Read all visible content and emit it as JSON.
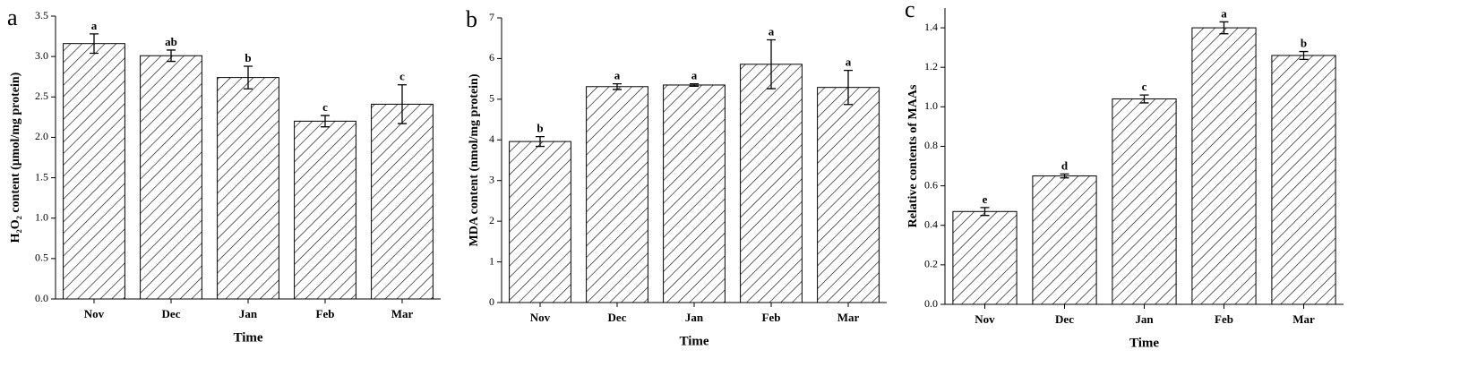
{
  "chart_data": [
    {
      "type": "bar",
      "panel_label": "a",
      "ylabel": "H₂O₂ content (μmol/mg protein)",
      "xlabel": "Time",
      "categories": [
        "Nov",
        "Dec",
        "Jan",
        "Feb",
        "Mar"
      ],
      "values": [
        3.16,
        3.01,
        2.74,
        2.2,
        2.41
      ],
      "errors": [
        0.12,
        0.07,
        0.14,
        0.07,
        0.24
      ],
      "letters": [
        "a",
        "ab",
        "b",
        "c",
        "c"
      ],
      "ylim": [
        0,
        3.5
      ],
      "yticks": [
        {
          "value": 0,
          "label": "0.0"
        },
        0.5,
        {
          "value": 1,
          "label": "1.0"
        },
        1.5,
        {
          "value": 2,
          "label": "2.0"
        },
        2.5,
        {
          "value": 3,
          "label": "3.0"
        },
        3.5
      ]
    },
    {
      "type": "bar",
      "panel_label": "b",
      "ylabel": "MDA content (nmol/mg protein)",
      "xlabel": "Time",
      "categories": [
        "Nov",
        "Dec",
        "Jan",
        "Feb",
        "Mar"
      ],
      "values": [
        3.96,
        5.31,
        5.35,
        5.86,
        5.29
      ],
      "errors": [
        0.12,
        0.07,
        0.03,
        0.6,
        0.42
      ],
      "letters": [
        "b",
        "a",
        "a",
        "a",
        "a"
      ],
      "ylim": [
        0,
        7
      ],
      "yticks": [
        0,
        1,
        2,
        3,
        4,
        5,
        6,
        7
      ]
    },
    {
      "type": "bar",
      "panel_label": "c",
      "ylabel": "Relative contents of MAAs",
      "xlabel": "Time",
      "categories": [
        "Nov",
        "Dec",
        "Jan",
        "Feb",
        "Mar"
      ],
      "values": [
        0.47,
        0.65,
        1.04,
        1.4,
        1.26
      ],
      "errors": [
        0.02,
        0.01,
        0.02,
        0.03,
        0.02
      ],
      "letters": [
        "e",
        "d",
        "c",
        "a",
        "b"
      ],
      "ylim": [
        0,
        1.5
      ],
      "yticks": [
        {
          "value": 0,
          "label": "0.0"
        },
        0.2,
        0.4,
        0.6,
        0.8,
        {
          "value": 1,
          "label": "1.0"
        },
        1.2,
        1.4
      ]
    }
  ]
}
